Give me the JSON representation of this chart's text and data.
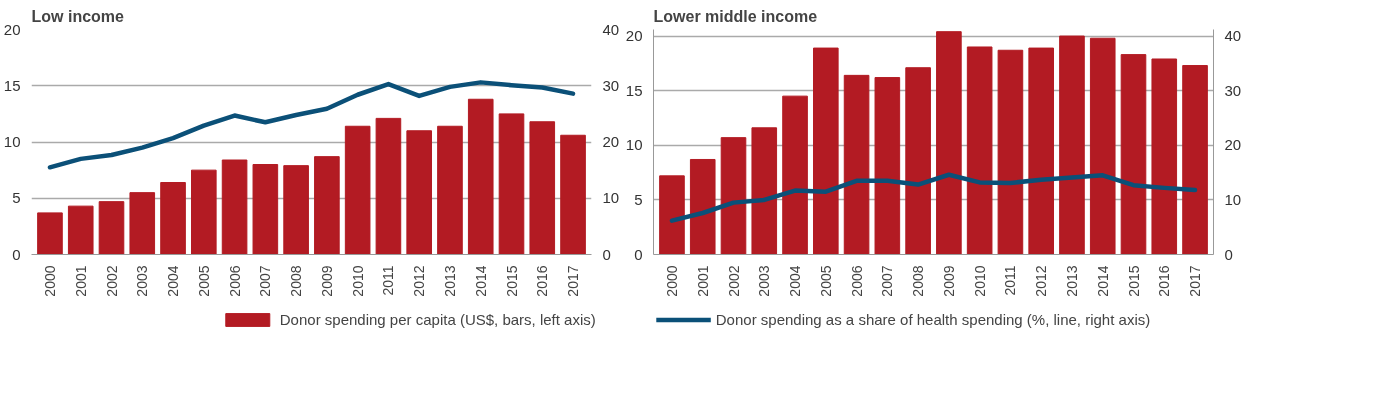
{
  "chart_data": [
    {
      "type": "bar",
      "title": "Low income",
      "categories": [
        "2000",
        "2001",
        "2002",
        "2003",
        "2004",
        "2005",
        "2006",
        "2007",
        "2008",
        "2009",
        "2010",
        "2011",
        "2012",
        "2013",
        "2014",
        "2015",
        "2016",
        "2017"
      ],
      "ylim": [
        0,
        20
      ],
      "yticks": [
        0,
        5,
        10,
        15,
        20
      ],
      "y2lim": [
        0,
        40
      ],
      "y2ticks": [
        0,
        10,
        20,
        30,
        40
      ],
      "grid": "y",
      "legend": "bottom",
      "series": [
        {
          "name": "Donor spending per capita (US$, bars, left axis)",
          "color": "#b31b23",
          "values": [
            3.7,
            4.3,
            4.7,
            5.5,
            6.4,
            7.5,
            8.4,
            8.0,
            7.9,
            8.7,
            11.4,
            12.1,
            11.0,
            11.4,
            13.8,
            12.5,
            11.8,
            10.6
          ]
        },
        {
          "type": "line",
          "axis": "y2",
          "color": "#0b5078",
          "values": [
            15.5,
            17.0,
            17.7,
            19.0,
            20.7,
            22.9,
            24.7,
            23.5,
            24.8,
            25.9,
            28.4,
            30.3,
            28.2,
            29.8,
            30.6,
            30.1,
            29.7,
            28.6
          ]
        }
      ]
    },
    {
      "type": "bar",
      "title": "Lower middle income",
      "categories": [
        "2000",
        "2001",
        "2002",
        "2003",
        "2004",
        "2005",
        "2006",
        "2007",
        "2008",
        "2009",
        "2010",
        "2011",
        "2012",
        "2013",
        "2014",
        "2015",
        "2016",
        "2017"
      ],
      "ylim": [
        0,
        20.6
      ],
      "yticks": [
        0,
        5,
        10,
        15,
        20
      ],
      "y2lim": [
        0,
        41.2
      ],
      "y2ticks": [
        0,
        10,
        20,
        30,
        40
      ],
      "grid": "y",
      "legend": "bottom",
      "series": [
        {
          "color": "#b31b23",
          "values": [
            7.2,
            8.7,
            10.7,
            11.6,
            14.5,
            18.9,
            16.4,
            16.2,
            17.1,
            20.4,
            19.0,
            18.7,
            18.9,
            20.0,
            19.8,
            18.3,
            17.9,
            17.3
          ]
        },
        {
          "name": "Donor spending as a share of health spending (%, line, right axis)",
          "type": "line",
          "axis": "y2",
          "color": "#0b5078",
          "values": [
            6.2,
            7.6,
            9.5,
            10.0,
            11.7,
            11.5,
            13.5,
            13.5,
            12.8,
            14.6,
            13.2,
            13.1,
            13.7,
            14.1,
            14.5,
            12.7,
            12.2,
            11.8
          ]
        }
      ]
    }
  ]
}
